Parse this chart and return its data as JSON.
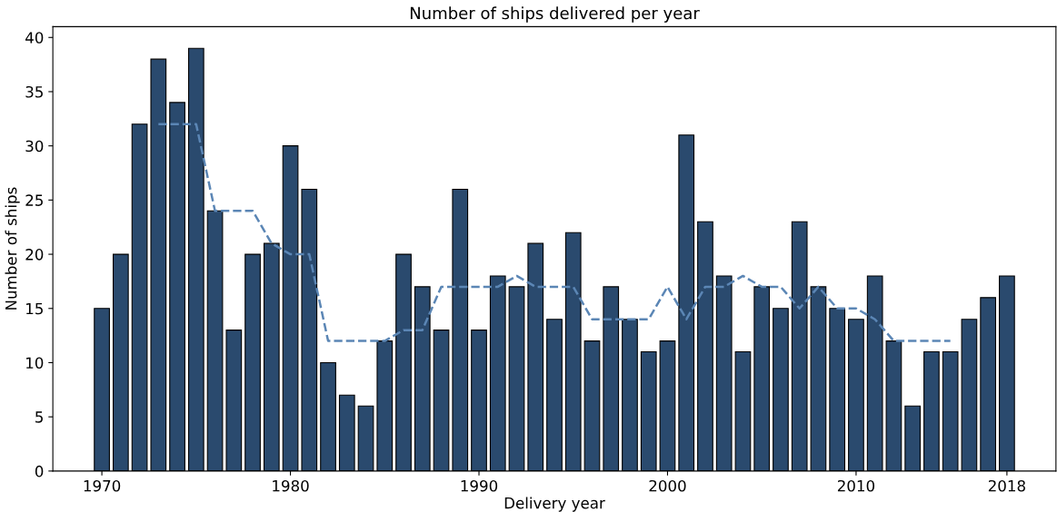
{
  "chart_data": {
    "type": "bar",
    "title": "Number of ships delivered per year",
    "xlabel": "Delivery year",
    "ylabel": "Number of ships",
    "x": [
      1970,
      1971,
      1972,
      1973,
      1974,
      1975,
      1976,
      1977,
      1978,
      1979,
      1980,
      1981,
      1982,
      1983,
      1984,
      1985,
      1986,
      1987,
      1988,
      1989,
      1990,
      1991,
      1992,
      1993,
      1994,
      1995,
      1996,
      1997,
      1998,
      1999,
      2000,
      2001,
      2002,
      2003,
      2004,
      2005,
      2006,
      2007,
      2008,
      2009,
      2010,
      2011,
      2012,
      2013,
      2014,
      2015,
      2016,
      2017,
      2018
    ],
    "series": [
      {
        "color": "#2a4a6e",
        "values": [
          15,
          20,
          32,
          38,
          34,
          39,
          24,
          13,
          20,
          21,
          30,
          26,
          10,
          7,
          6,
          12,
          20,
          17,
          13,
          26,
          13,
          18,
          17,
          21,
          14,
          22,
          12,
          17,
          14,
          11,
          12,
          31,
          23,
          18,
          11,
          17,
          15,
          23,
          17,
          15,
          14,
          18,
          12,
          6,
          11,
          11,
          14,
          16,
          18
        ]
      },
      {
        "type": "line",
        "color": "#5b86b5",
        "line_style": "dashed",
        "x": [
          1973,
          1974,
          1975,
          1976,
          1977,
          1978,
          1979,
          1980,
          1981,
          1982,
          1983,
          1984,
          1985,
          1986,
          1987,
          1988,
          1989,
          1990,
          1991,
          1992,
          1993,
          1994,
          1995,
          1996,
          1997,
          1998,
          1999,
          2000,
          2001,
          2002,
          2003,
          2004,
          2005,
          2006,
          2007,
          2008,
          2009,
          2010,
          2011,
          2012,
          2013,
          2014,
          2015
        ],
        "values": [
          32,
          32,
          32,
          24,
          24,
          24,
          21,
          20,
          20,
          12,
          12,
          12,
          12,
          13,
          13,
          17,
          17,
          17,
          17,
          18,
          17,
          17,
          17,
          14,
          14,
          14,
          14,
          17,
          14,
          17,
          17,
          18,
          17,
          17,
          15,
          17,
          15,
          15,
          14,
          12,
          12,
          12,
          12
        ]
      }
    ],
    "xlim": [
      1967.4,
      2020.6
    ],
    "xticks": [
      1970,
      1980,
      1990,
      2000,
      2010,
      2018
    ],
    "ylim": [
      0,
      41
    ],
    "yticks": [
      0,
      5,
      10,
      15,
      20,
      25,
      30,
      35,
      40
    ],
    "grid": false,
    "legend": false
  }
}
